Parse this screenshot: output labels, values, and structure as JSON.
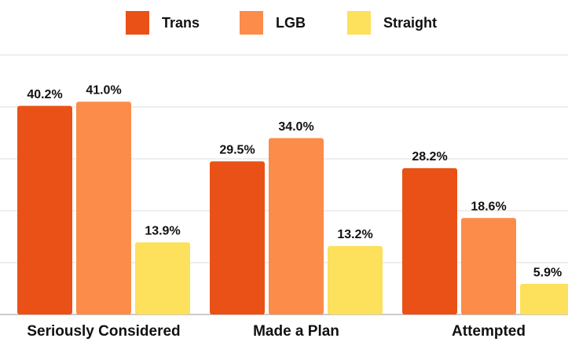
{
  "chart_data": {
    "type": "bar",
    "categories": [
      "Seriously Considered",
      "Made a Plan",
      "Attempted"
    ],
    "series": [
      {
        "name": "Trans",
        "color": "#ea5117",
        "values": [
          40.2,
          29.5,
          28.2
        ],
        "value_labels": [
          "40.2%",
          "29.5%",
          "28.2%"
        ]
      },
      {
        "name": "LGB",
        "color": "#fb8c4a",
        "values": [
          41.0,
          34.0,
          18.6
        ],
        "value_labels": [
          "41.0%",
          "34.0%",
          "18.6%"
        ]
      },
      {
        "name": "Straight",
        "color": "#fde05b",
        "values": [
          13.9,
          13.2,
          5.9
        ],
        "value_labels": [
          "13.9%",
          "13.2%",
          "5.9%"
        ]
      }
    ],
    "ylim": [
      0,
      50
    ],
    "yticks": [
      0,
      10,
      20,
      30,
      40,
      50
    ],
    "grid": true,
    "legend": "top"
  }
}
